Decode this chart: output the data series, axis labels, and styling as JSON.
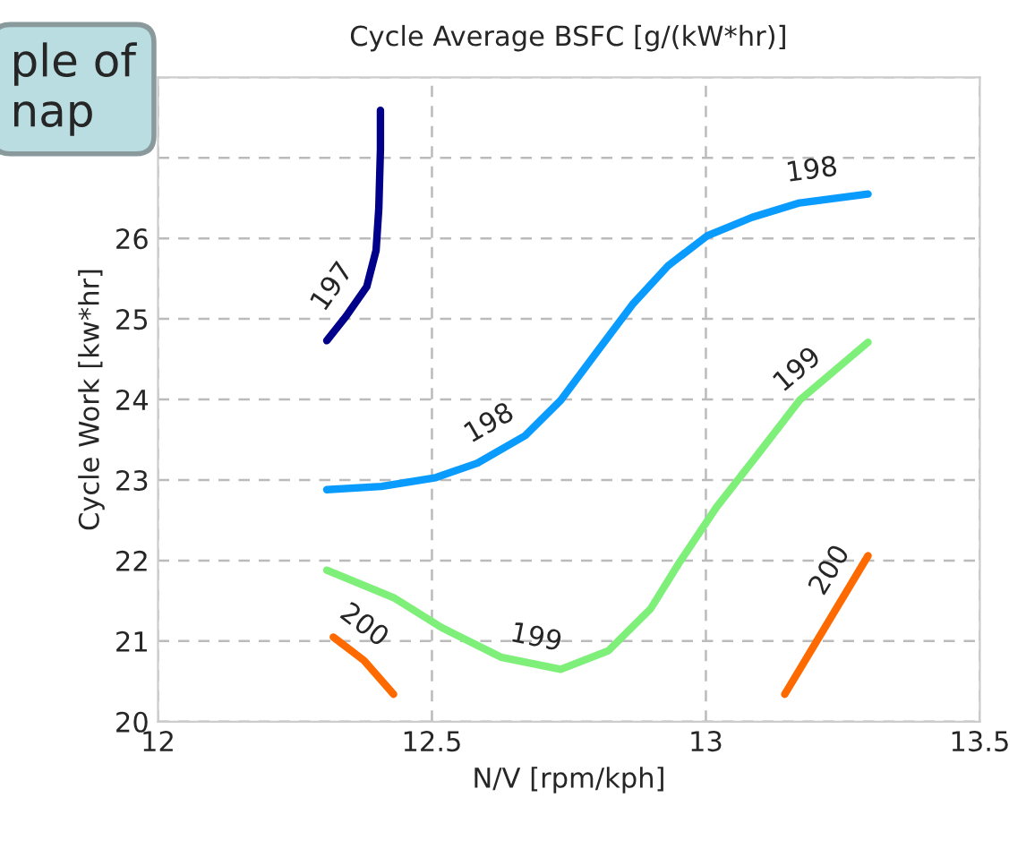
{
  "chart_data": {
    "type": "line",
    "title": "Cycle Average BSFC [g/(kW*hr)]",
    "xlabel": "N/V [rpm/kph]",
    "ylabel": "Cycle Work [kw*hr]",
    "series": [
      {
        "color": "#00008b",
        "x": [
          12.308,
          12.343,
          12.381,
          12.398,
          12.403,
          12.406,
          12.406
        ],
        "values": [
          24.73,
          25.03,
          25.4,
          25.85,
          26.37,
          27.11,
          27.59
        ]
      },
      {
        "color": "#0a9bff",
        "x": [
          12.308,
          12.408,
          12.507,
          12.583,
          12.67,
          12.735,
          12.801,
          12.866,
          12.931,
          13.002,
          13.084,
          13.171,
          13.296
        ],
        "values": [
          22.88,
          22.92,
          23.03,
          23.21,
          23.55,
          23.99,
          24.59,
          25.18,
          25.66,
          26.03,
          26.26,
          26.44,
          26.55
        ]
      },
      {
        "color": "#7ef07a",
        "x": [
          12.308,
          12.43,
          12.517,
          12.626,
          12.735,
          12.822,
          12.899,
          12.953,
          13.019,
          13.095,
          13.171,
          13.296
        ],
        "values": [
          21.88,
          21.54,
          21.17,
          20.8,
          20.65,
          20.88,
          21.4,
          21.99,
          22.66,
          23.32,
          23.99,
          24.71
        ]
      },
      {
        "color": "#ff6a00",
        "x": [
          12.32,
          12.376,
          12.43
        ],
        "values": [
          21.05,
          20.76,
          20.34
        ]
      },
      {
        "color": "#ff6a00",
        "x": [
          13.144,
          13.296
        ],
        "values": [
          20.34,
          22.06
        ]
      }
    ],
    "annotations": [
      {
        "text": "197",
        "x": 12.36,
        "y": 25.2
      },
      {
        "text": "198",
        "x": 12.63,
        "y": 23.4
      },
      {
        "text": "198",
        "x": 13.2,
        "y": 26.5
      },
      {
        "text": "199",
        "x": 12.68,
        "y": 20.7
      },
      {
        "text": "199",
        "x": 13.2,
        "y": 24.1
      },
      {
        "text": "200",
        "x": 12.345,
        "y": 20.92
      },
      {
        "text": "200",
        "x": 13.27,
        "y": 21.7
      },
      "ple of\nnap"
    ],
    "xlim": [
      12,
      13.5
    ],
    "xticks": [
      12,
      12.5,
      13,
      13.5
    ],
    "ylim": [
      20,
      28
    ],
    "yticks": [
      20,
      21,
      22,
      23,
      24,
      25,
      26,
      {
        "value": 27,
        "label": null
      },
      {
        "value": 28,
        "label": null
      }
    ],
    "grid": true,
    "line_style": "solid",
    "legend": false
  }
}
